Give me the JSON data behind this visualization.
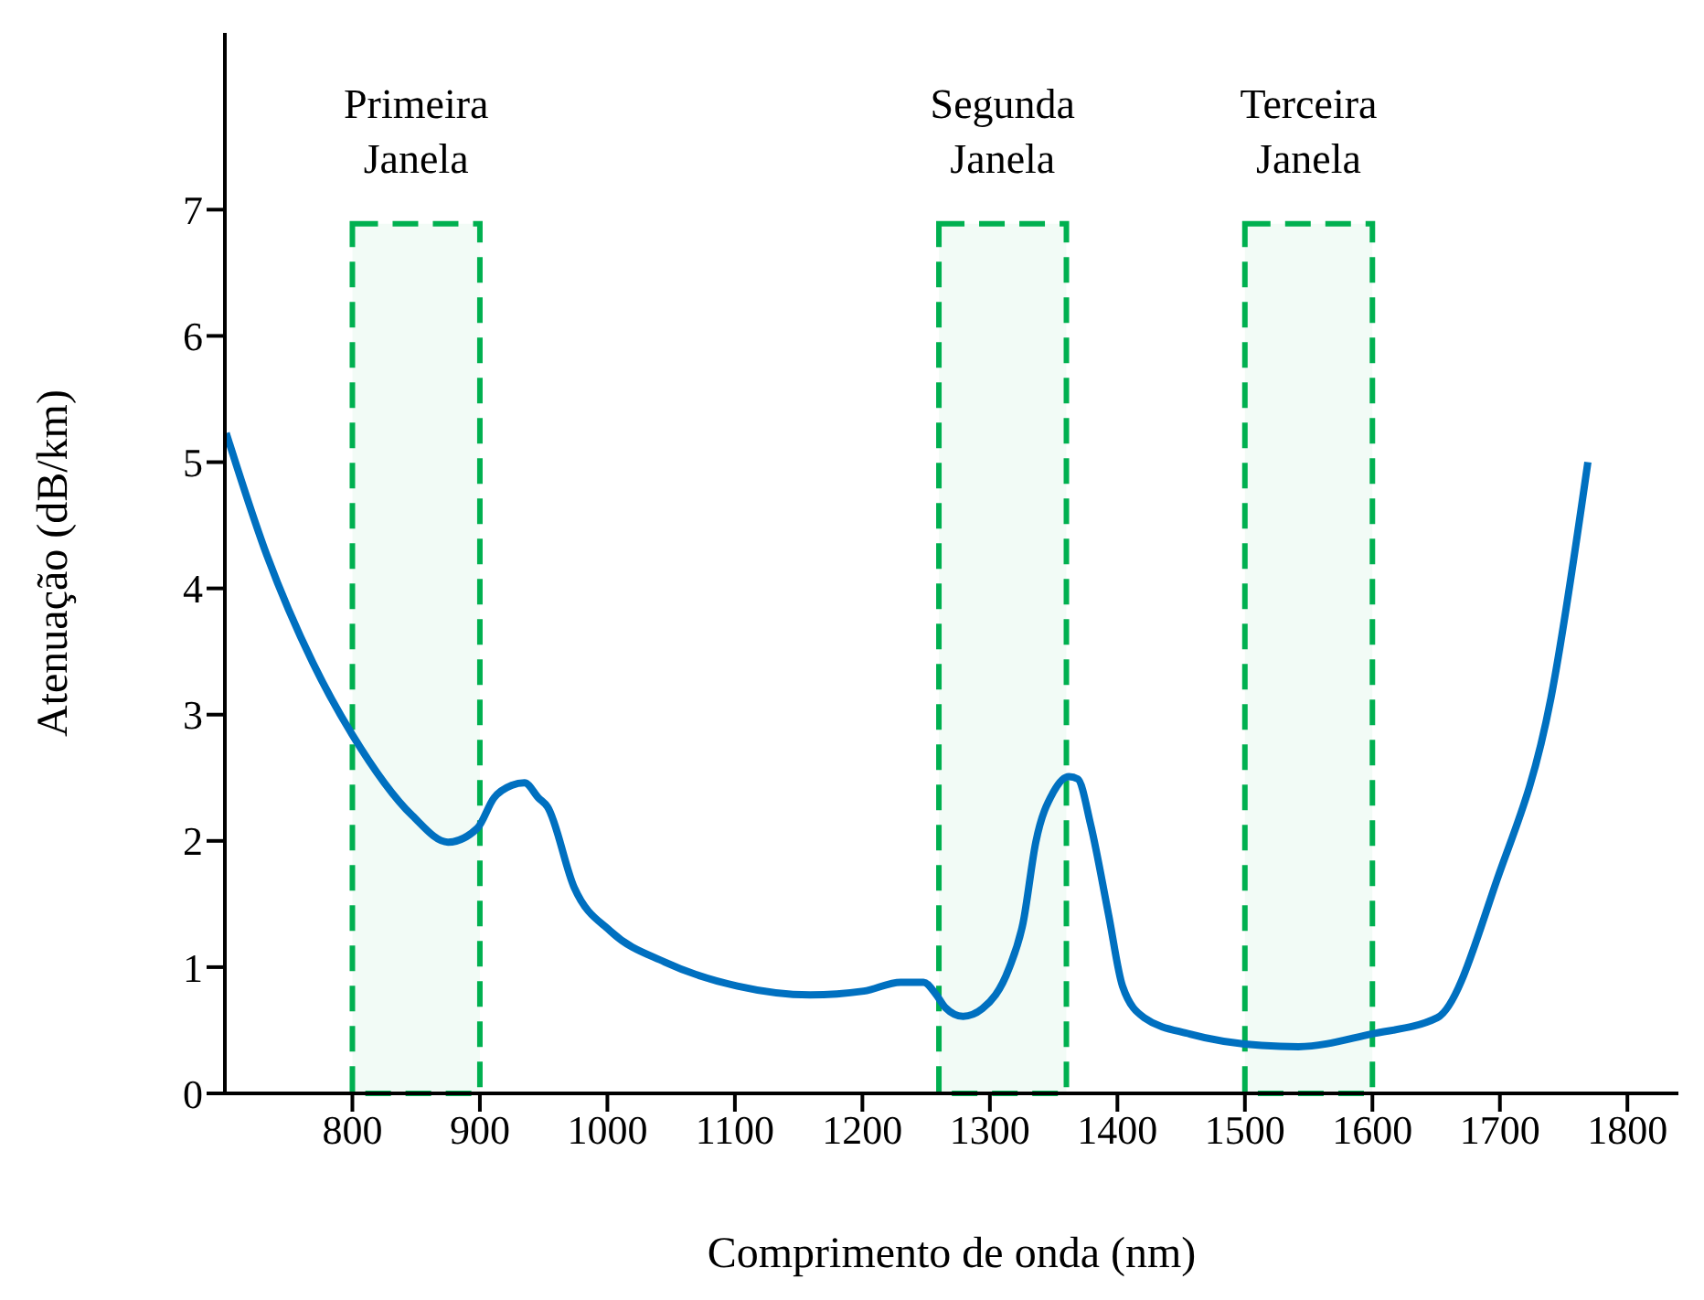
{
  "chart_data": {
    "type": "line",
    "xlabel": "Comprimento de onda (nm)",
    "ylabel": "Atenuação (dB/km)",
    "x": [
      701,
      733,
      769,
      800,
      847,
      875,
      898,
      911,
      925,
      935,
      946,
      953,
      974,
      1003,
      1045,
      1102,
      1159,
      1201,
      1230,
      1248,
      1258,
      1265,
      1279,
      1294,
      1315,
      1326,
      1336,
      1350,
      1362,
      1369,
      1379,
      1393,
      1404,
      1421,
      1457,
      1513,
      1542,
      1599,
      1651,
      1698,
      1740,
      1769
    ],
    "series": [
      {
        "color": "#0070c0",
        "values": [
          5.23,
          4.26,
          3.41,
          2.84,
          2.2,
          1.99,
          2.1,
          2.34,
          2.44,
          2.46,
          2.34,
          2.27,
          1.63,
          1.28,
          1.04,
          0.85,
          0.78,
          0.81,
          0.88,
          0.88,
          0.78,
          0.68,
          0.61,
          0.67,
          0.99,
          1.35,
          1.99,
          2.39,
          2.51,
          2.49,
          2.13,
          1.42,
          0.85,
          0.6,
          0.47,
          0.38,
          0.37,
          0.47,
          0.6,
          1.7,
          3.13,
          5.0
        ]
      }
    ],
    "xlim": [
      700,
      1840
    ],
    "xticks": [
      800,
      900,
      1000,
      1100,
      1200,
      1300,
      1400,
      1500,
      1600,
      1700,
      1800
    ],
    "ylim": [
      0,
      8.4
    ],
    "yticks": [
      0,
      1,
      2,
      3,
      4,
      5,
      6,
      7
    ],
    "grid": false,
    "legend": false,
    "marker": "none",
    "line_style": "solid",
    "bands": [
      {
        "axis": "x",
        "from": 800,
        "to": 900,
        "label": "Primeira Janela",
        "color": "#00b050"
      },
      {
        "axis": "x",
        "from": 1260,
        "to": 1360,
        "label": "Segunda Janela",
        "color": "#00b050"
      },
      {
        "axis": "x",
        "from": 1500,
        "to": 1600,
        "label": "Terceira Janela",
        "color": "#00b050"
      }
    ]
  }
}
